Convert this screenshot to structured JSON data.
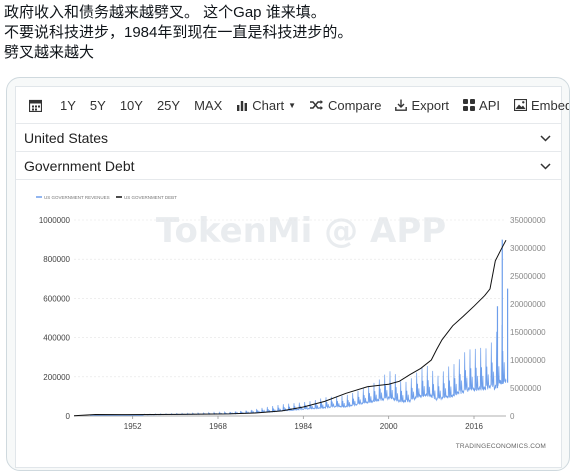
{
  "post": {
    "lines": [
      "政府收入和债务越来越劈叉。 这个Gap 谁来填。",
      "不要说科技进步，1984年到现在一直是科技进步的。",
      "劈叉越来越大"
    ]
  },
  "toolbar": {
    "ranges": [
      "1Y",
      "5Y",
      "10Y",
      "25Y",
      "MAX"
    ],
    "chart_label": "Chart",
    "compare_label": "Compare",
    "export_label": "Export",
    "api_label": "API",
    "embed_label": "Embed"
  },
  "selects": {
    "country": "United States",
    "indicator": "Government Debt"
  },
  "icons": {
    "calendar": "calendar-icon",
    "chart": "bar-chart-icon",
    "compare": "shuffle-icon",
    "export": "download-icon",
    "api": "grid-icon",
    "embed": "image-icon",
    "dropdown": "chevron-down-icon"
  },
  "colors": {
    "revenue": "#6d9eeb",
    "debt": "#111111",
    "watermark": "#e9ecef",
    "grid": "#e3e3e3",
    "axis_text": "#444444"
  },
  "chart_data": {
    "type": "line",
    "legend": [
      "US GOVERNMENT REVENUES",
      "US GOVERNMENT DEBT"
    ],
    "legend_position": "top-left",
    "watermark": "TokenMi @ APP",
    "source": "TRADINGECONOMICS.COM",
    "x_ticks": [
      "1952",
      "1968",
      "1984",
      "2000",
      "2016"
    ],
    "xlim": [
      1941,
      2022
    ],
    "left_axis": {
      "ticks": [
        "0",
        "200000",
        "400000",
        "600000",
        "800000",
        "1000000"
      ],
      "ylim": [
        0,
        1000000
      ]
    },
    "right_axis": {
      "ticks": [
        "0",
        "5000000",
        "10000000",
        "15000000",
        "20000000",
        "25000000",
        "30000000",
        "35000000"
      ],
      "ylim": [
        0,
        35000000
      ]
    },
    "series": [
      {
        "name": "US GOVERNMENT REVENUES",
        "axis": "left",
        "monthly_envelope": [
          [
            1954,
            5000,
            9000
          ],
          [
            1960,
            7000,
            12000
          ],
          [
            1966,
            9000,
            16000
          ],
          [
            1970,
            11000,
            20000
          ],
          [
            1974,
            14000,
            30000
          ],
          [
            1976,
            18000,
            40000
          ],
          [
            1978,
            20000,
            50000
          ],
          [
            1980,
            25000,
            60000
          ],
          [
            1982,
            28000,
            65000
          ],
          [
            1984,
            33000,
            70000
          ],
          [
            1986,
            36000,
            80000
          ],
          [
            1988,
            40000,
            95000
          ],
          [
            1990,
            45000,
            100000
          ],
          [
            1992,
            45000,
            105000
          ],
          [
            1994,
            55000,
            125000
          ],
          [
            1996,
            65000,
            150000
          ],
          [
            1998,
            75000,
            180000
          ],
          [
            2000,
            85000,
            230000
          ],
          [
            2001,
            80000,
            225000
          ],
          [
            2002,
            70000,
            180000
          ],
          [
            2003,
            70000,
            170000
          ],
          [
            2004,
            72000,
            185000
          ],
          [
            2005,
            85000,
            215000
          ],
          [
            2006,
            95000,
            240000
          ],
          [
            2007,
            100000,
            260000
          ],
          [
            2008,
            95000,
            240000
          ],
          [
            2009,
            80000,
            200000
          ],
          [
            2010,
            85000,
            220000
          ],
          [
            2011,
            90000,
            250000
          ],
          [
            2012,
            95000,
            260000
          ],
          [
            2013,
            110000,
            280000
          ],
          [
            2014,
            115000,
            320000
          ],
          [
            2015,
            125000,
            340000
          ],
          [
            2016,
            125000,
            340000
          ],
          [
            2017,
            130000,
            350000
          ],
          [
            2018,
            130000,
            340000
          ],
          [
            2019,
            140000,
            360000
          ],
          [
            2020,
            130000,
            420000
          ],
          [
            2021,
            160000,
            460000
          ],
          [
            2022,
            170000,
            480000
          ]
        ],
        "spikes": [
          [
            2020.4,
            560000
          ],
          [
            2021.3,
            900000
          ],
          [
            2022.3,
            650000
          ]
        ]
      },
      {
        "name": "US GOVERNMENT DEBT",
        "axis": "right",
        "x": [
          1941,
          1945,
          1950,
          1960,
          1970,
          1975,
          1980,
          1984,
          1988,
          1992,
          1996,
          2000,
          2002,
          2004,
          2006,
          2008,
          2009,
          2010,
          2012,
          2014,
          2016,
          2018,
          2019,
          2020,
          2021,
          2022
        ],
        "y": [
          50000,
          260000,
          257000,
          290000,
          380000,
          540000,
          910000,
          1600000,
          2600000,
          4060000,
          5220000,
          5670000,
          6200000,
          7400000,
          8500000,
          10000000,
          11900000,
          13600000,
          16100000,
          17800000,
          19600000,
          21500000,
          22700000,
          27700000,
          29600000,
          31400000
        ]
      }
    ]
  }
}
